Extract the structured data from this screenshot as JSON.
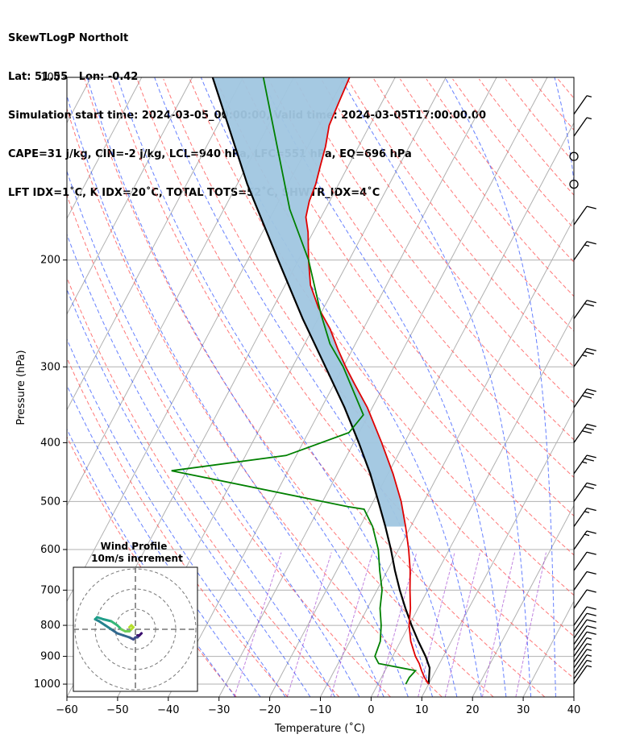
{
  "header": {
    "line1": "SkewTLogP Northolt",
    "line2": "Lat: 51.55   Lon: -0.42",
    "line3": "Simulation start time: 2024-03-05_00:00:00, Valid time: 2024-03-05T17:00:00.00",
    "line4": "CAPE=31 j/kg, CIN=-2 j/kg, LCL=940 hPa, LFC=551 hPa, EQ=696 hPa",
    "line5": "LFT IDX=1˚C, K IDX=20˚C, TOTAL TOTS=52˚C, SHWTR_IDX=4˚C"
  },
  "chart_data": {
    "type": "line",
    "skew": 35,
    "xlabel": "Temperature (˚C)",
    "ylabel": "Pressure (hPa)",
    "xlim": [
      -60,
      40
    ],
    "ylim": [
      1050,
      100
    ],
    "y_log": true,
    "grid": true,
    "x_ticks": [
      -60,
      -50,
      -40,
      -30,
      -20,
      -10,
      0,
      10,
      20,
      30,
      40
    ],
    "x_tick_labels": [
      "−60",
      "−50",
      "−40",
      "−30",
      "−20",
      "−10",
      "0",
      "10",
      "20",
      "30",
      "40"
    ],
    "y_ticks": [
      1000,
      900,
      800,
      700,
      600,
      500,
      400,
      300,
      200,
      100
    ],
    "y_tick_labels": [
      "1000",
      "900",
      "800",
      "700",
      "600",
      "500",
      "400",
      "300",
      "200",
      "100"
    ],
    "colors": {
      "temperature": "#e00000",
      "dewpoint": "#008000",
      "parcel": "#000000",
      "cape": "#a0c6e0",
      "dry_adiabat": "#ff5555",
      "moist_adiabat": "#3355ff",
      "mixing_ratio": "#9933cc",
      "isotherm": "#b0b0b0"
    },
    "series": [
      {
        "key": "temperature",
        "points": [
          [
            1000,
            10.0
          ],
          [
            975,
            8.5
          ],
          [
            950,
            7.2
          ],
          [
            925,
            6.0
          ],
          [
            900,
            4.5
          ],
          [
            850,
            2.0
          ],
          [
            800,
            0.0
          ],
          [
            750,
            -1.5
          ],
          [
            700,
            -3.5
          ],
          [
            650,
            -5.5
          ],
          [
            600,
            -8.0
          ],
          [
            550,
            -11.0
          ],
          [
            500,
            -14.5
          ],
          [
            450,
            -19.0
          ],
          [
            400,
            -24.5
          ],
          [
            350,
            -31.0
          ],
          [
            320,
            -36.0
          ],
          [
            300,
            -39.5
          ],
          [
            280,
            -43.0
          ],
          [
            260,
            -46.5
          ],
          [
            240,
            -51.0
          ],
          [
            220,
            -55.0
          ],
          [
            200,
            -58.0
          ],
          [
            180,
            -61.0
          ],
          [
            170,
            -63.0
          ],
          [
            160,
            -64.0
          ],
          [
            150,
            -64.5
          ],
          [
            140,
            -65.5
          ],
          [
            130,
            -66.5
          ],
          [
            120,
            -68.0
          ],
          [
            110,
            -68.5
          ],
          [
            100,
            -69.0
          ]
        ]
      },
      {
        "key": "dewpoint",
        "points": [
          [
            1000,
            5.5
          ],
          [
            975,
            5.5
          ],
          [
            950,
            6.0
          ],
          [
            925,
            -2.0
          ],
          [
            900,
            -3.5
          ],
          [
            850,
            -4.0
          ],
          [
            800,
            -5.5
          ],
          [
            750,
            -7.5
          ],
          [
            700,
            -9.0
          ],
          [
            650,
            -11.5
          ],
          [
            600,
            -14.0
          ],
          [
            550,
            -17.5
          ],
          [
            515,
            -21.0
          ],
          [
            510,
            -24.5
          ],
          [
            445,
            -63.0
          ],
          [
            420,
            -42.0
          ],
          [
            385,
            -32.0
          ],
          [
            360,
            -31.0
          ],
          [
            300,
            -40.0
          ],
          [
            275,
            -45.0
          ],
          [
            245,
            -50.0
          ],
          [
            200,
            -58.0
          ],
          [
            165,
            -67.0
          ],
          [
            100,
            -86.0
          ]
        ]
      },
      {
        "key": "parcel",
        "points": [
          [
            1000,
            10.0
          ],
          [
            940,
            8.5
          ],
          [
            900,
            6.5
          ],
          [
            850,
            3.5
          ],
          [
            800,
            0.5
          ],
          [
            750,
            -2.5
          ],
          [
            700,
            -5.5
          ],
          [
            650,
            -8.5
          ],
          [
            600,
            -11.5
          ],
          [
            550,
            -15.0
          ],
          [
            500,
            -19.0
          ],
          [
            450,
            -23.5
          ],
          [
            400,
            -29.0
          ],
          [
            350,
            -35.5
          ],
          [
            300,
            -43.5
          ],
          [
            250,
            -53.0
          ],
          [
            200,
            -64.0
          ],
          [
            150,
            -78.0
          ],
          [
            100,
            -96.0
          ]
        ]
      }
    ],
    "wind_barbs": [
      {
        "p": 1000,
        "speed_kt": 5
      },
      {
        "p": 980,
        "speed_kt": 5
      },
      {
        "p": 960,
        "speed_kt": 5
      },
      {
        "p": 940,
        "speed_kt": 5
      },
      {
        "p": 920,
        "speed_kt": 5
      },
      {
        "p": 900,
        "speed_kt": 5
      },
      {
        "p": 880,
        "speed_kt": 10
      },
      {
        "p": 860,
        "speed_kt": 10
      },
      {
        "p": 840,
        "speed_kt": 10
      },
      {
        "p": 820,
        "speed_kt": 10
      },
      {
        "p": 800,
        "speed_kt": 10
      },
      {
        "p": 750,
        "speed_kt": 10
      },
      {
        "p": 700,
        "speed_kt": 10
      },
      {
        "p": 650,
        "speed_kt": 10
      },
      {
        "p": 600,
        "speed_kt": 15
      },
      {
        "p": 550,
        "speed_kt": 15
      },
      {
        "p": 500,
        "speed_kt": 20
      },
      {
        "p": 450,
        "speed_kt": 25
      },
      {
        "p": 400,
        "speed_kt": 30
      },
      {
        "p": 350,
        "speed_kt": 30
      },
      {
        "p": 300,
        "speed_kt": 25
      },
      {
        "p": 250,
        "speed_kt": 20
      },
      {
        "p": 200,
        "speed_kt": 15
      },
      {
        "p": 175,
        "speed_kt": 10
      },
      {
        "p": 150,
        "speed_kt": 0
      },
      {
        "p": 135,
        "speed_kt": 0
      },
      {
        "p": 125,
        "speed_kt": 5
      },
      {
        "p": 115,
        "speed_kt": 5
      }
    ],
    "hodograph": {
      "title_line1": "Wind Profile",
      "title_line2": "10m/s increment",
      "ring_step_ms": 10,
      "rings": 3,
      "trace_colors": [
        "#3b0f70",
        "#3e4a89",
        "#31688e",
        "#26828e",
        "#1f9e89",
        "#35b779",
        "#6ece58",
        "#b5de2b"
      ],
      "points_uv": [
        [
          1,
          -3
        ],
        [
          2,
          -3
        ],
        [
          3,
          -2
        ],
        [
          1,
          -4
        ],
        [
          0,
          -4
        ],
        [
          -1,
          -5
        ],
        [
          -3,
          -4
        ],
        [
          -6,
          -3
        ],
        [
          -9,
          -2
        ],
        [
          -12,
          0
        ],
        [
          -15,
          2
        ],
        [
          -18,
          4
        ],
        [
          -20,
          5
        ],
        [
          -19,
          6
        ],
        [
          -16,
          5
        ],
        [
          -12,
          4
        ],
        [
          -9,
          2
        ],
        [
          -8,
          1
        ],
        [
          -7,
          0
        ],
        [
          -5,
          -1
        ],
        [
          -3,
          -1
        ],
        [
          -2,
          0
        ],
        [
          -1,
          1
        ],
        [
          -2,
          2
        ],
        [
          -3,
          1
        ]
      ]
    }
  }
}
